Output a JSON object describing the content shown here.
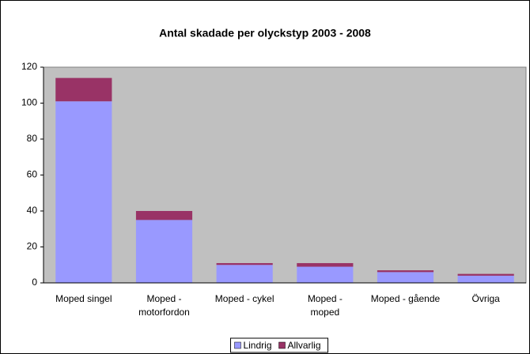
{
  "chart_data": {
    "type": "stacked_bar",
    "title": "Antal skadade per olyckstyp 2003 - 2008",
    "categories": [
      "Moped singel",
      "Moped -\nmotorfordon",
      "Moped - cykel",
      "Moped -\nmoped",
      "Moped - gående",
      "Övriga"
    ],
    "series": [
      {
        "name": "Lindrig",
        "color": "#9999ff",
        "values": [
          101,
          35,
          10,
          9,
          6,
          4
        ]
      },
      {
        "name": "Allvarlig",
        "color": "#993366",
        "values": [
          13,
          5,
          1,
          2,
          1,
          1
        ]
      }
    ],
    "ylim": [
      0,
      120
    ],
    "yticks": [
      0,
      20,
      40,
      60,
      80,
      100,
      120
    ],
    "grid": false,
    "legend": "bottom",
    "plot_background": "#c0c0c0"
  }
}
